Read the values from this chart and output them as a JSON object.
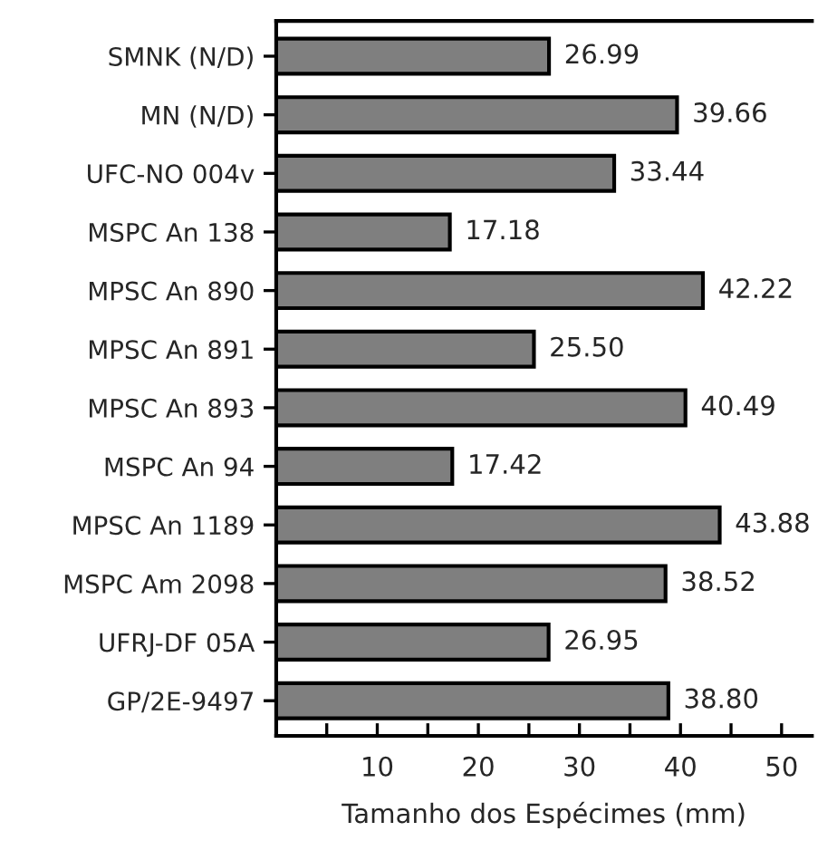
{
  "chart_data": {
    "type": "bar",
    "orientation": "horizontal",
    "xlabel": "Tamanho dos Espécimes (mm)",
    "categories": [
      "SMNK (N/D)",
      "MN (N/D)",
      "UFC-NO 004v",
      "MSPC An 138",
      "MPSC An 890",
      "MPSC An 891",
      "MPSC An 893",
      "MSPC An 94",
      "MPSC An 1189",
      "MSPC Am 2098",
      "UFRJ-DF 05A",
      "GP/2E-9497"
    ],
    "values": [
      26.99,
      39.66,
      33.44,
      17.18,
      42.22,
      25.5,
      40.49,
      17.42,
      43.88,
      38.52,
      26.95,
      38.8
    ],
    "value_labels": [
      "26.99",
      "39.66",
      "33.44",
      "17.18",
      "42.22",
      "25.50",
      "40.49",
      "17.42",
      "43.88",
      "38.52",
      "26.95",
      "38.80"
    ],
    "color": "#7f7f7f",
    "xlim": [
      0,
      53
    ],
    "xticks": [
      {
        "value": 5,
        "label": null
      },
      10,
      {
        "value": 15,
        "label": null
      },
      20,
      {
        "value": 25,
        "label": null
      },
      30,
      {
        "value": 35,
        "label": null
      },
      40,
      {
        "value": 45,
        "label": null
      },
      50
    ],
    "grid": false
  }
}
